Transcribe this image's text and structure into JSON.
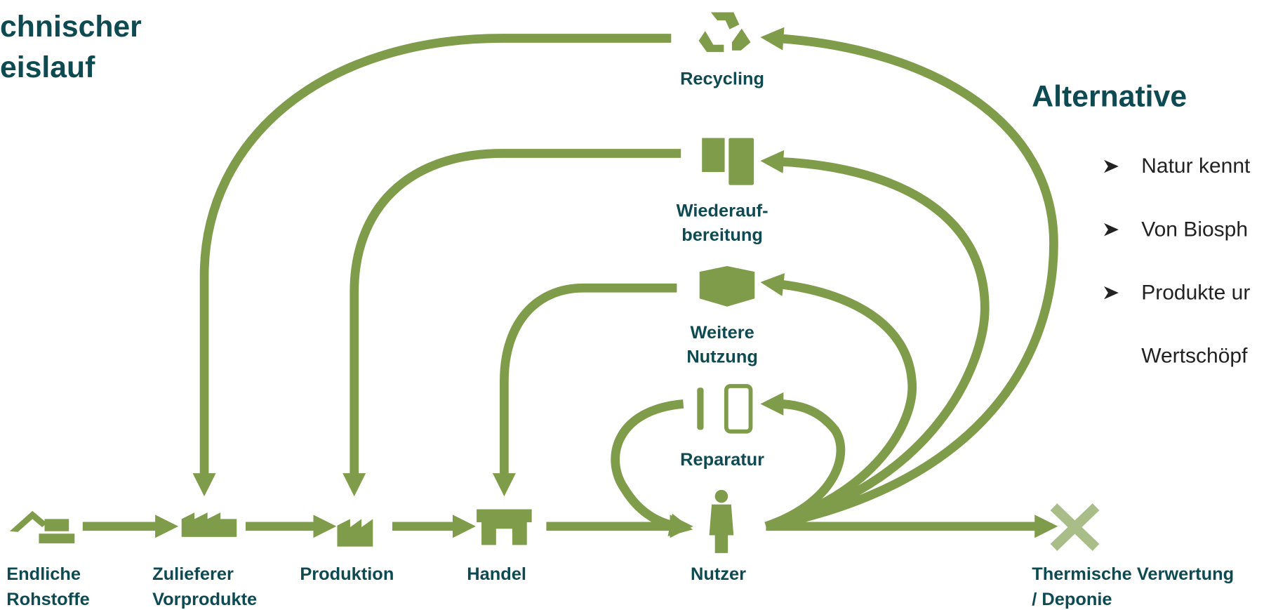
{
  "title": [
    "chnischer",
    "eislauf"
  ],
  "loop_nodes": [
    {
      "label": [
        "Recycling"
      ]
    },
    {
      "label": [
        "Wiederauf-",
        "bereitung"
      ]
    },
    {
      "label": [
        "Weitere",
        "Nutzung"
      ]
    },
    {
      "label": [
        "Reparatur"
      ]
    }
  ],
  "chain_nodes": [
    {
      "label": [
        "Endliche",
        "Rohstoffe"
      ]
    },
    {
      "label": [
        "Zulieferer",
        "Vorprodukte"
      ]
    },
    {
      "label": [
        "Produktion"
      ]
    },
    {
      "label": [
        "Handel"
      ]
    },
    {
      "label": [
        "Nutzer"
      ]
    },
    {
      "label": [
        "Thermische Verwertung",
        " / Deponie"
      ]
    }
  ],
  "side": {
    "heading": "Alternative",
    "bullets": [
      "Natur kennt",
      "Von Biosph",
      "Produkte ur"
    ],
    "continuation": "Wertschöpf"
  }
}
